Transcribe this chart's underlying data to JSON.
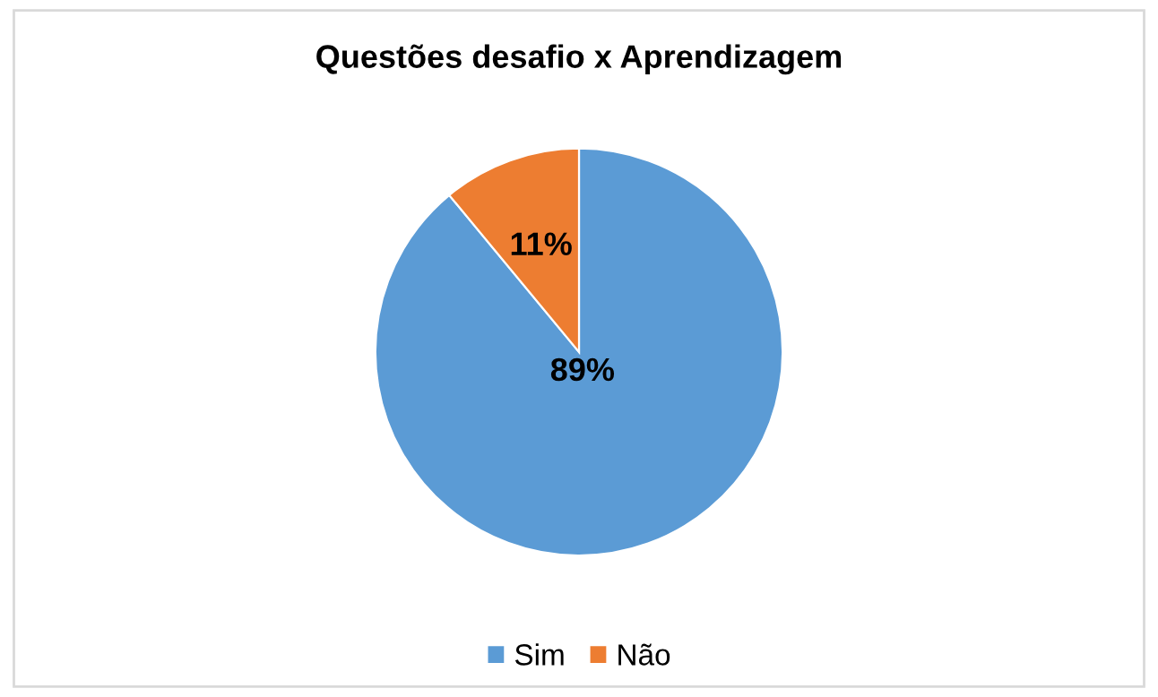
{
  "chart_data": {
    "type": "pie",
    "title": "Questões desafio x Aprendizagem",
    "categories": [
      "Sim",
      "Não"
    ],
    "values": [
      89,
      11
    ],
    "colors": [
      "#5b9bd5",
      "#ed7d31"
    ],
    "value_labels": [
      "89%",
      "11%"
    ],
    "legend": "bottom"
  }
}
